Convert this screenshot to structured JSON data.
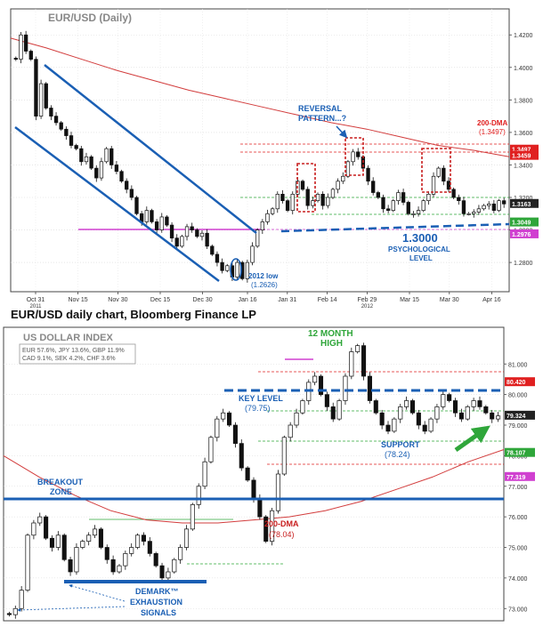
{
  "caption": "EUR/USD daily chart, Bloomberg Finance LP",
  "chart_data": [
    {
      "type": "candlestick",
      "title": "EUR/USD (Daily)",
      "y_axis_side": "right",
      "ylim": [
        1.262,
        1.436
      ],
      "y_ticks": [
        "1.4200",
        "1.4000",
        "1.3800",
        "1.3600",
        "1.3400",
        "1.3200",
        "1.3000",
        "1.2800"
      ],
      "x_ticks": [
        {
          "label": "Oct 31",
          "sub": "2011",
          "pos": 0.05
        },
        {
          "label": "Nov 15",
          "sub": "",
          "pos": 0.135
        },
        {
          "label": "Nov 30",
          "sub": "",
          "pos": 0.215
        },
        {
          "label": "Dec 15",
          "sub": "",
          "pos": 0.3
        },
        {
          "label": "Dec 30",
          "sub": "",
          "pos": 0.385
        },
        {
          "label": "Jan 16",
          "sub": "",
          "pos": 0.475
        },
        {
          "label": "Jan 31",
          "sub": "",
          "pos": 0.555
        },
        {
          "label": "Feb 14",
          "sub": "",
          "pos": 0.635
        },
        {
          "label": "Feb 29",
          "sub": "2012",
          "pos": 0.715
        },
        {
          "label": "Mar 15",
          "sub": "",
          "pos": 0.8
        },
        {
          "label": "Mar 30",
          "sub": "",
          "pos": 0.88
        },
        {
          "label": "Apr 16",
          "sub": "",
          "pos": 0.965
        }
      ],
      "close_path": [
        1.405,
        1.42,
        1.41,
        1.405,
        1.37,
        1.39,
        1.375,
        1.37,
        1.366,
        1.362,
        1.358,
        1.352,
        1.35,
        1.342,
        1.345,
        1.338,
        1.332,
        1.342,
        1.35,
        1.34,
        1.336,
        1.33,
        1.325,
        1.32,
        1.31,
        1.305,
        1.312,
        1.305,
        1.3,
        1.308,
        1.303,
        1.295,
        1.29,
        1.296,
        1.302,
        1.3,
        1.296,
        1.298,
        1.29,
        1.285,
        1.28,
        1.275,
        1.278,
        1.271,
        1.28,
        1.27,
        1.28,
        1.29,
        1.3,
        1.305,
        1.31,
        1.313,
        1.322,
        1.318,
        1.312,
        1.322,
        1.33,
        1.325,
        1.315,
        1.318,
        1.322,
        1.315,
        1.32,
        1.325,
        1.33,
        1.333,
        1.342,
        1.348,
        1.345,
        1.338,
        1.33,
        1.323,
        1.32,
        1.313,
        1.312,
        1.318,
        1.323,
        1.317,
        1.31,
        1.31,
        1.312,
        1.318,
        1.322,
        1.333,
        1.338,
        1.33,
        1.325,
        1.32,
        1.318,
        1.31,
        1.31,
        1.311,
        1.313,
        1.315,
        1.316,
        1.312,
        1.318,
        1.316
      ],
      "moving_average": {
        "name": "200-DMA",
        "value": "(1.3497)",
        "path": [
          1.418,
          1.412,
          1.405,
          1.398,
          1.392,
          1.386,
          1.381,
          1.376,
          1.371,
          1.366,
          1.362,
          1.357,
          1.352,
          1.349,
          1.345
        ]
      },
      "price_tags": [
        {
          "value": "1.3497",
          "color": "#e02020"
        },
        {
          "value": "1.3459",
          "color": "#e02020"
        },
        {
          "value": "1.3163",
          "color": "#222222"
        },
        {
          "value": "1.3049",
          "color": "#2fa63a"
        },
        {
          "value": "1.2976",
          "color": "#d040d0"
        }
      ],
      "annotations": {
        "reversal_line1": "REVERSAL",
        "reversal_line2": "PATTERN...?",
        "dma_label": "200-DMA",
        "dma_value": "(1.3497)",
        "low_line1": "2012 low",
        "low_line2": "(1.2626)",
        "psych_value": "1.3000",
        "psych_line1": "PSYCHOLOGICAL",
        "psych_line2": "LEVEL"
      },
      "colors": {
        "channel": "#1a5fb4",
        "reversal_box": "#c81e1e",
        "dma": "#d23c3c",
        "annotation": "#1a5fb4",
        "low_circle": "#1a5fb4"
      }
    },
    {
      "type": "candlestick",
      "title": "US DOLLAR INDEX",
      "legend_line1": "EUR 57.6%, JPY 13.6%, GBP 11.9%",
      "legend_line2": "CAD 9.1%,  SEK 4.2%,  CHF 3.6%",
      "y_axis_side": "right",
      "ylim": [
        72.6,
        82.2
      ],
      "y_ticks": [
        "81.000",
        "80.000",
        "79.000",
        "78.000",
        "77.000",
        "76.000",
        "75.000",
        "74.000",
        "73.000"
      ],
      "close_path": [
        72.8,
        73.0,
        73.6,
        75.4,
        75.8,
        76.0,
        75.3,
        75.0,
        75.4,
        74.6,
        74.2,
        75.0,
        75.2,
        75.4,
        75.6,
        75.0,
        74.6,
        74.2,
        74.4,
        74.8,
        75.0,
        75.4,
        75.2,
        74.8,
        74.4,
        74.0,
        74.2,
        74.6,
        75.0,
        75.6,
        76.4,
        77.0,
        77.8,
        78.6,
        79.2,
        79.4,
        79.0,
        78.4,
        77.6,
        77.2,
        76.6,
        76.0,
        75.2,
        76.2,
        77.4,
        78.6,
        79.0,
        79.4,
        79.8,
        80.4,
        80.6,
        80.0,
        79.6,
        79.2,
        79.8,
        80.6,
        81.4,
        81.6,
        80.6,
        79.8,
        79.4,
        79.0,
        78.8,
        79.2,
        79.6,
        79.8,
        79.4,
        79.0,
        78.8,
        79.2,
        79.6,
        80.0,
        79.8,
        79.4,
        79.2,
        79.6,
        79.8,
        79.6,
        79.4,
        79.2,
        79.3
      ],
      "moving_average": {
        "name": "200-DMA",
        "value": "(78.04)",
        "path": [
          78.0,
          77.3,
          76.7,
          76.2,
          75.9,
          75.8,
          75.8,
          75.9,
          76.0,
          76.2,
          76.5,
          76.9,
          77.3,
          77.8,
          78.2
        ]
      },
      "price_tags": [
        {
          "value": "80.420",
          "color": "#e02020"
        },
        {
          "value": "79.324",
          "color": "#222222"
        },
        {
          "value": "78.107",
          "color": "#2fa63a"
        },
        {
          "value": "77.319",
          "color": "#d040d0"
        }
      ],
      "annotations": {
        "high_line1": "12 MONTH",
        "high_line2": "HIGH",
        "key_line1": "KEY LEVEL",
        "key_line2": "(79.75)",
        "support_line1": "SUPPORT",
        "support_line2": "(78.24)",
        "breakout_line1": "BREAKOUT",
        "breakout_line2": "ZONE",
        "dma_label": "200-DMA",
        "dma_value": "(78.04)",
        "demark_line1": "DEMARK™",
        "demark_line2": "EXHAUSTION",
        "demark_line3": "SIGNALS"
      },
      "levels": {
        "key_level": 79.75,
        "support": 78.24,
        "breakout": 76.35,
        "demark_base": 73.55
      },
      "colors": {
        "key_level": "#1a5fb4",
        "breakout": "#1a5fb4",
        "high_text": "#2fa63a",
        "dma": "#d23c3c",
        "arrow": "#2fa63a",
        "annotation": "#1a5fb4"
      }
    }
  ]
}
